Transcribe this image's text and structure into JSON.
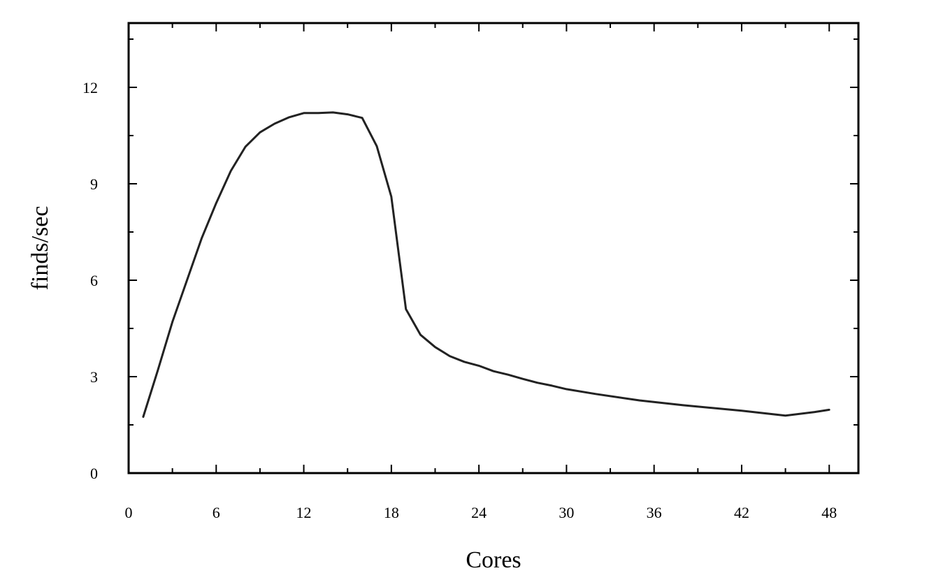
{
  "chart_data": {
    "type": "line",
    "title": "",
    "xlabel": "Cores",
    "ylabel": "finds/sec",
    "xlim": [
      0,
      50
    ],
    "ylim": [
      0,
      14
    ],
    "x_ticks": [
      0,
      6,
      12,
      18,
      24,
      30,
      36,
      42,
      48
    ],
    "y_ticks": [
      0,
      3,
      6,
      9,
      12
    ],
    "x_minor_step": 3,
    "y_minor_step": 1.5,
    "grid": false,
    "legend": "none",
    "line_color": "#222222",
    "series": [
      {
        "x": [
          1,
          2,
          3,
          4,
          5,
          6,
          7,
          8,
          9,
          10,
          11,
          12,
          13,
          14,
          15,
          16,
          17,
          18,
          19,
          20,
          21,
          22,
          23,
          24,
          25,
          26,
          27,
          28,
          29,
          30,
          32,
          35,
          38,
          42,
          45,
          47,
          48
        ],
        "y": [
          1.75,
          3.2,
          4.7,
          6.0,
          7.3,
          8.4,
          9.4,
          10.15,
          10.6,
          10.87,
          11.07,
          11.2,
          11.2,
          11.22,
          11.16,
          11.05,
          10.17,
          8.6,
          5.1,
          4.3,
          3.92,
          3.64,
          3.46,
          3.34,
          3.17,
          3.06,
          2.93,
          2.81,
          2.72,
          2.61,
          2.46,
          2.26,
          2.11,
          1.94,
          1.79,
          1.9,
          1.97
        ]
      }
    ]
  }
}
